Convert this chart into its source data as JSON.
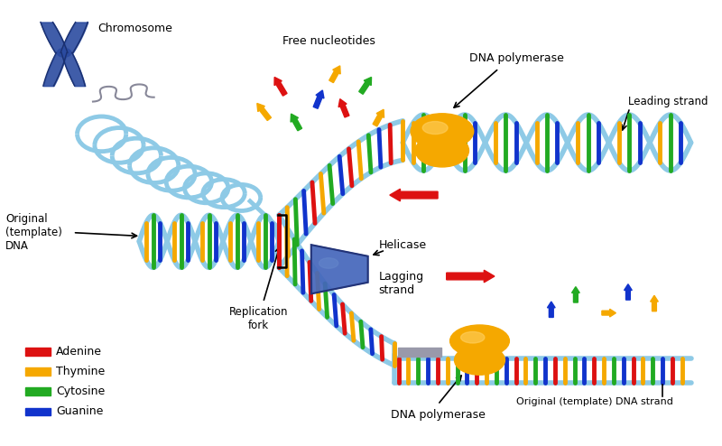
{
  "background_color": "#ffffff",
  "labels": {
    "chromosome": "Chromosome",
    "original_dna": "Original\n(template)\nDNA",
    "replication_fork": "Replication\nfork",
    "free_nucleotides": "Free nucleotides",
    "dna_polymerase_top": "DNA polymerase",
    "leading_strand": "Leading strand",
    "helicase": "Helicase",
    "lagging_strand": "Lagging\nstrand",
    "dna_polymerase_bottom": "DNA polymerase",
    "original_template_strand": "Original (template) DNA strand"
  },
  "legend": [
    {
      "label": "Adenine",
      "color": "#dd1111"
    },
    {
      "label": "Thymine",
      "color": "#f5a800"
    },
    {
      "label": "Cytosine",
      "color": "#22aa22"
    },
    {
      "label": "Guanine",
      "color": "#1133cc"
    }
  ],
  "colors": {
    "backbone": "#8ecae6",
    "backbone2": "#5ba4c8",
    "adenine": "#dd1111",
    "thymine": "#f5a800",
    "cytosine": "#22aa22",
    "guanine": "#1133cc",
    "polymerase": "#f5a800",
    "helicase": "#4466bb",
    "chromosome": "#2b4ba0",
    "chrom_outline": "#1a3070",
    "red_arrow": "#dd1111",
    "gray_primer": "#9999aa"
  },
  "figsize": [
    8.0,
    4.94
  ],
  "dpi": 100
}
